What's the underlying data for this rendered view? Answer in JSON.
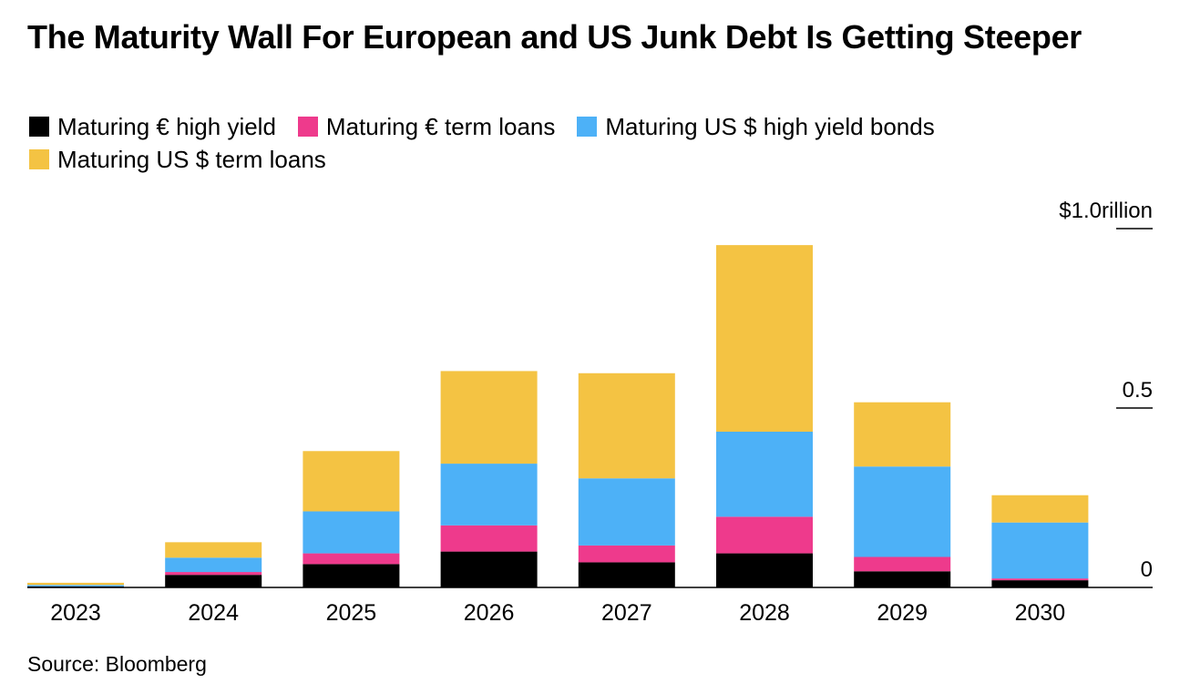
{
  "title": "The Maturity Wall For European and US Junk Debt Is Getting Steeper",
  "source": "Source: Bloomberg",
  "chart_data": {
    "type": "bar",
    "stacked": true,
    "categories": [
      "2023",
      "2024",
      "2025",
      "2026",
      "2027",
      "2028",
      "2029",
      "2030"
    ],
    "series": [
      {
        "name": "Maturing € high yield",
        "color": "#000000",
        "values": [
          0.003,
          0.035,
          0.065,
          0.1,
          0.07,
          0.095,
          0.045,
          0.02
        ]
      },
      {
        "name": "Maturing € term loans",
        "color": "#ee3a8c",
        "values": [
          0.0,
          0.008,
          0.03,
          0.073,
          0.047,
          0.102,
          0.04,
          0.005
        ]
      },
      {
        "name": "Maturing US $ high yield bonds",
        "color": "#4db1f7",
        "values": [
          0.004,
          0.04,
          0.117,
          0.172,
          0.187,
          0.237,
          0.252,
          0.156
        ]
      },
      {
        "name": "Maturing US $ term loans",
        "color": "#f4c343",
        "values": [
          0.006,
          0.043,
          0.168,
          0.258,
          0.293,
          0.52,
          0.179,
          0.076
        ]
      }
    ],
    "y_ticks": [
      {
        "value": 0,
        "label": "0"
      },
      {
        "value": 0.5,
        "label": "0.5"
      },
      {
        "value": 1.0,
        "label": "$1.0rillion"
      }
    ],
    "ylim": [
      0,
      1.0
    ],
    "y_axis_side": "right",
    "legend_position": "top",
    "grid": false
  }
}
